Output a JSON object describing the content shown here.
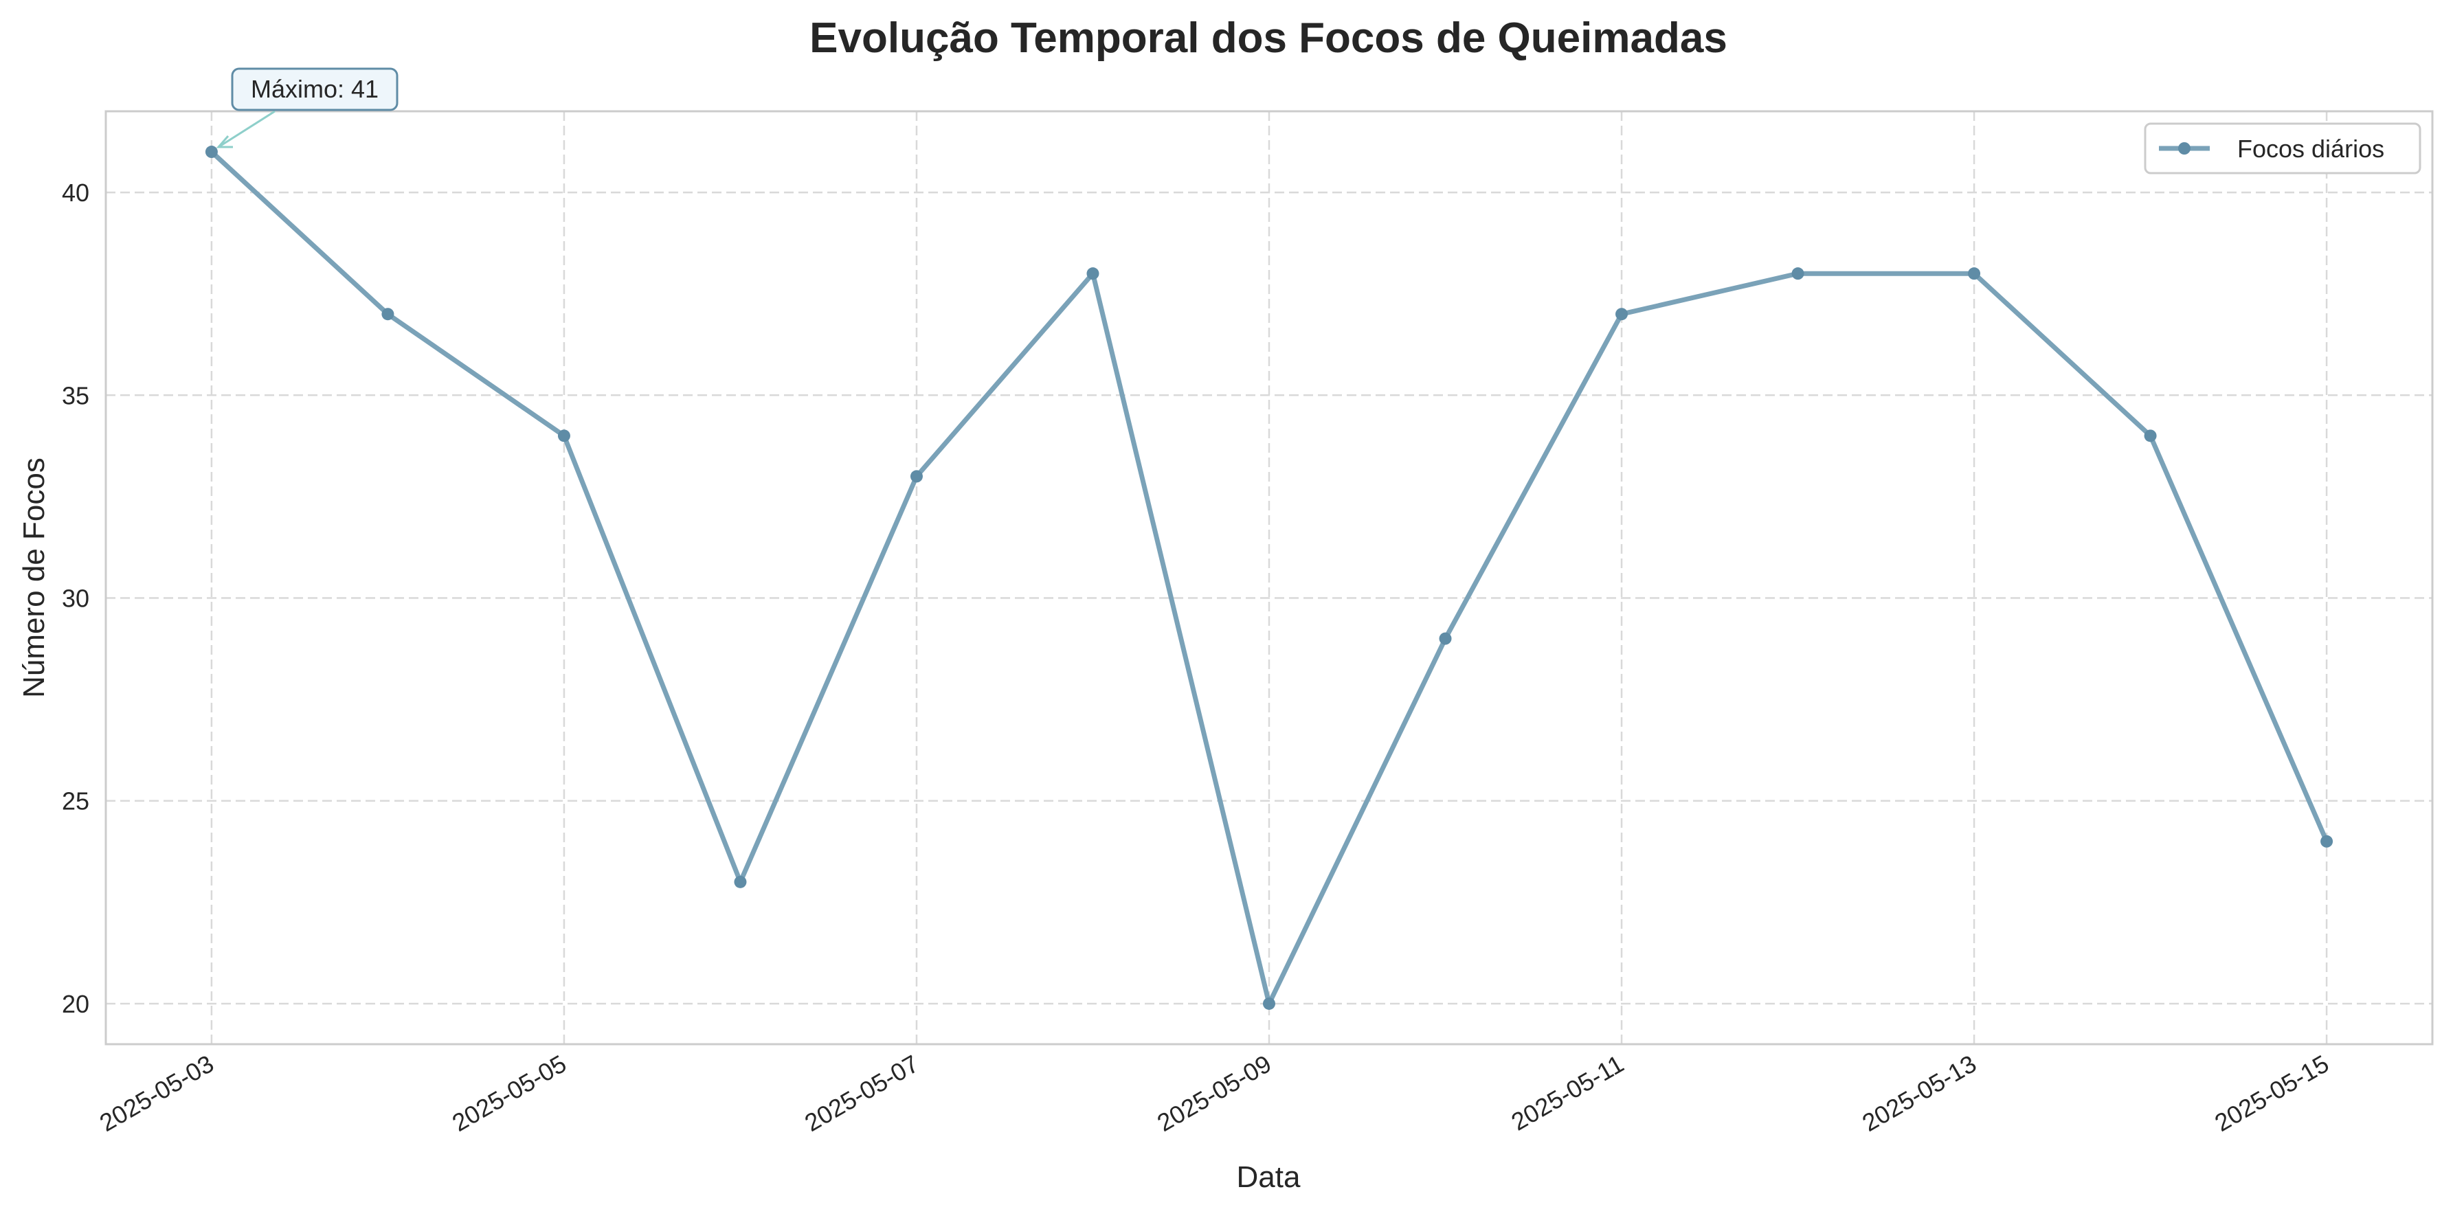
{
  "chart_data": {
    "type": "line",
    "title": "Evolução Temporal dos Focos de Queimadas",
    "xlabel": "Data",
    "ylabel": "Número de Focos",
    "x": [
      "2025-05-03",
      "2025-05-04",
      "2025-05-05",
      "2025-05-06",
      "2025-05-07",
      "2025-05-08",
      "2025-05-09",
      "2025-05-10",
      "2025-05-11",
      "2025-05-12",
      "2025-05-13",
      "2025-05-14",
      "2025-05-15"
    ],
    "series": [
      {
        "name": "Focos diários",
        "color": "#7aa2b8",
        "marker_color": "#5f8ca6",
        "values": [
          41,
          37,
          34,
          23,
          33,
          38,
          20,
          29,
          37,
          38,
          38,
          34,
          24
        ]
      }
    ],
    "xticks": [
      "2025-05-03",
      "2025-05-05",
      "2025-05-07",
      "2025-05-09",
      "2025-05-11",
      "2025-05-13",
      "2025-05-15"
    ],
    "yticks": [
      20,
      25,
      30,
      35,
      40
    ],
    "ylim": [
      19,
      42
    ],
    "xlim": [
      "2025-05-02T09:36",
      "2025-05-15T14:24"
    ],
    "grid": true,
    "legend_position": "top-right",
    "annotation": {
      "text": "Máximo: 41",
      "x": "2025-05-03",
      "y": 41,
      "arrow_color": "#8ecfca",
      "box_color": "#eef6fb",
      "box_border": "#5f8ca6"
    }
  }
}
